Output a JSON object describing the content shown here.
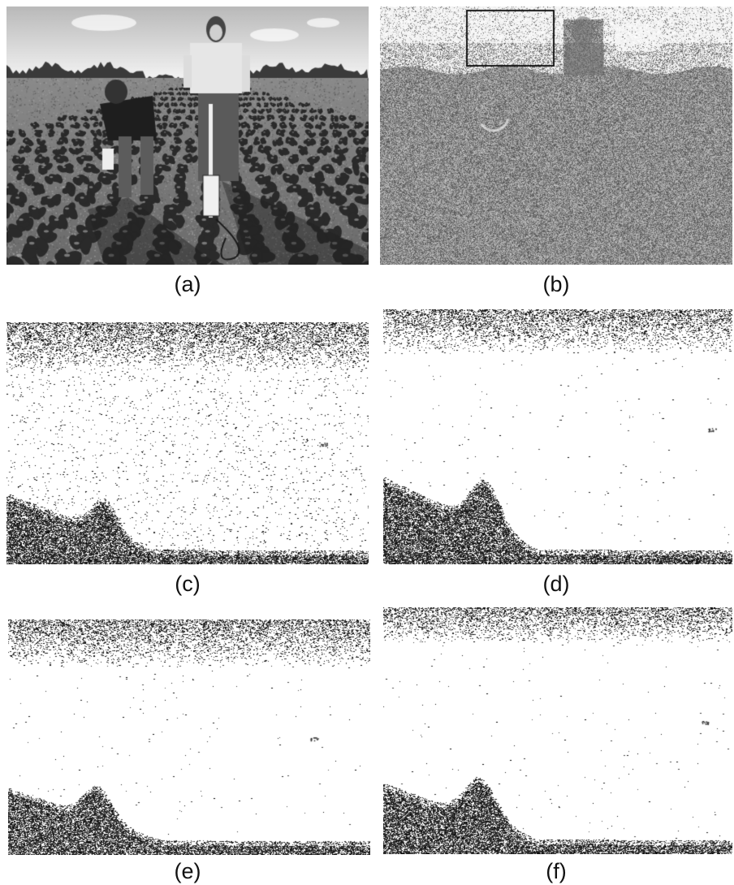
{
  "figure": {
    "panels": [
      {
        "id": "a",
        "label": "(a)",
        "content": "photo"
      },
      {
        "id": "b",
        "label": "(b)",
        "content": "noise-map"
      },
      {
        "id": "c",
        "label": "(c)",
        "content": "segmentation"
      },
      {
        "id": "d",
        "label": "(d)",
        "content": "segmentation"
      },
      {
        "id": "e",
        "label": "(e)",
        "content": "segmentation"
      },
      {
        "id": "f",
        "label": "(f)",
        "content": "segmentation"
      }
    ]
  }
}
